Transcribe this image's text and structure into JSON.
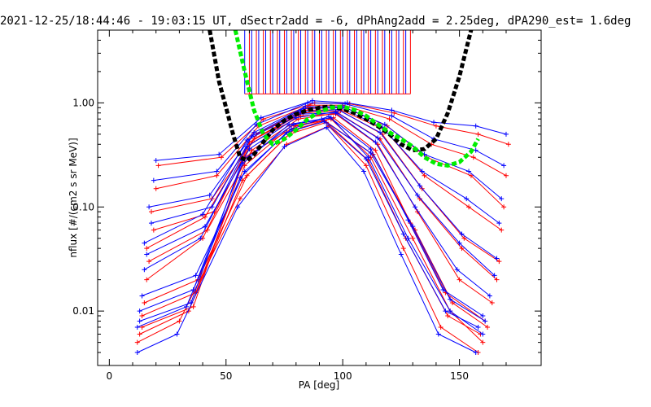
{
  "chart_data": {
    "type": "line",
    "title": "2021-12-25/18:44:46 - 19:03:15 UT, dSectr2add = -6, dPhAng2add = 2.25deg, dPA290_est=   1.6deg",
    "xlabel": "PA [deg]",
    "ylabel": "nflux [#/(cm2 s sr MeV)]",
    "xlim": [
      -5,
      185
    ],
    "ylim": [
      0.003,
      5.0
    ],
    "yscale": "log",
    "xticks": [
      0,
      50,
      100,
      150
    ],
    "xtick_labels": [
      "0",
      "50",
      "100",
      "150"
    ],
    "yticks": [
      0.01,
      0.1,
      1.0
    ],
    "ytick_labels": [
      "0.01",
      "0.10",
      "1.00"
    ],
    "grid": false,
    "colors": {
      "red": "#ff0000",
      "blue": "#0000ff",
      "black": "#000000",
      "green": "#00ee00"
    },
    "series": [
      {
        "name": "",
        "color": "#000000",
        "style": "thick-dashed",
        "x": [
          43,
          47,
          50,
          53,
          56,
          59,
          62,
          66,
          70,
          75,
          80,
          85,
          90,
          95,
          100,
          105,
          110,
          115,
          120,
          125,
          130,
          135,
          140,
          145,
          150,
          155
        ],
        "y": [
          5.0,
          1.6,
          0.9,
          0.5,
          0.3,
          0.28,
          0.32,
          0.42,
          0.55,
          0.68,
          0.78,
          0.85,
          0.9,
          0.92,
          0.88,
          0.8,
          0.7,
          0.6,
          0.5,
          0.4,
          0.35,
          0.36,
          0.45,
          0.8,
          1.8,
          5.0
        ]
      },
      {
        "name": "",
        "color": "#00ee00",
        "style": "thick-dashed",
        "x": [
          54,
          58,
          62,
          66,
          70,
          75,
          80,
          85,
          90,
          95,
          100,
          105,
          110,
          115,
          120,
          125,
          130,
          135,
          140,
          145,
          150,
          155,
          158
        ],
        "y": [
          5.0,
          2.0,
          0.85,
          0.5,
          0.4,
          0.45,
          0.55,
          0.7,
          0.82,
          0.9,
          0.92,
          0.86,
          0.75,
          0.62,
          0.52,
          0.45,
          0.38,
          0.3,
          0.26,
          0.25,
          0.27,
          0.34,
          0.45
        ]
      }
    ],
    "red_bin_x": [
      60,
      63,
      66,
      69,
      72,
      75,
      78,
      81,
      84,
      87,
      90,
      93,
      96,
      99,
      102,
      105,
      108,
      111,
      114,
      117,
      120,
      123,
      126,
      129
    ],
    "blue_bin_x": [
      58,
      61,
      64,
      67,
      70,
      73,
      76,
      79,
      82,
      85,
      88,
      91,
      94,
      97,
      100,
      103,
      106,
      109,
      112,
      115,
      118,
      121,
      124,
      127
    ],
    "red_spectra": [
      [
        [
          14,
          0.007
        ],
        [
          36,
          0.011
        ],
        [
          58,
          0.3
        ],
        [
          80,
          0.6
        ],
        [
          95,
          0.7
        ],
        [
          112,
          0.3
        ],
        [
          130,
          0.05
        ],
        [
          146,
          0.01
        ],
        [
          160,
          0.005
        ]
      ],
      [
        [
          16,
          0.02
        ],
        [
          40,
          0.05
        ],
        [
          60,
          0.4
        ],
        [
          82,
          0.75
        ],
        [
          97,
          0.78
        ],
        [
          115,
          0.4
        ],
        [
          132,
          0.09
        ],
        [
          150,
          0.02
        ],
        [
          164,
          0.012
        ]
      ],
      [
        [
          18,
          0.09
        ],
        [
          44,
          0.12
        ],
        [
          62,
          0.45
        ],
        [
          84,
          0.85
        ],
        [
          99,
          0.86
        ],
        [
          118,
          0.55
        ],
        [
          135,
          0.2
        ],
        [
          154,
          0.1
        ],
        [
          168,
          0.06
        ]
      ],
      [
        [
          12,
          0.005
        ],
        [
          30,
          0.008
        ],
        [
          56,
          0.12
        ],
        [
          76,
          0.4
        ],
        [
          94,
          0.6
        ],
        [
          110,
          0.25
        ],
        [
          126,
          0.04
        ],
        [
          142,
          0.007
        ],
        [
          158,
          0.004
        ]
      ],
      [
        [
          20,
          0.15
        ],
        [
          46,
          0.2
        ],
        [
          64,
          0.6
        ],
        [
          86,
          0.95
        ],
        [
          100,
          0.95
        ],
        [
          120,
          0.7
        ],
        [
          138,
          0.4
        ],
        [
          156,
          0.3
        ],
        [
          170,
          0.2
        ]
      ],
      [
        [
          15,
          0.012
        ],
        [
          38,
          0.02
        ],
        [
          59,
          0.2
        ],
        [
          79,
          0.55
        ],
        [
          96,
          0.72
        ],
        [
          114,
          0.35
        ],
        [
          129,
          0.07
        ],
        [
          144,
          0.015
        ],
        [
          161,
          0.008
        ]
      ],
      [
        [
          17,
          0.03
        ],
        [
          42,
          0.06
        ],
        [
          61,
          0.35
        ],
        [
          81,
          0.7
        ],
        [
          98,
          0.8
        ],
        [
          116,
          0.45
        ],
        [
          133,
          0.12
        ],
        [
          151,
          0.04
        ],
        [
          166,
          0.02
        ]
      ],
      [
        [
          13,
          0.006
        ],
        [
          34,
          0.01
        ],
        [
          57,
          0.18
        ],
        [
          77,
          0.5
        ],
        [
          93,
          0.65
        ],
        [
          111,
          0.28
        ],
        [
          127,
          0.05
        ],
        [
          145,
          0.009
        ],
        [
          159,
          0.006
        ]
      ],
      [
        [
          19,
          0.06
        ],
        [
          45,
          0.09
        ],
        [
          63,
          0.5
        ],
        [
          85,
          0.9
        ],
        [
          101,
          0.9
        ],
        [
          119,
          0.6
        ],
        [
          136,
          0.3
        ],
        [
          155,
          0.2
        ],
        [
          169,
          0.1
        ]
      ],
      [
        [
          14,
          0.009
        ],
        [
          37,
          0.015
        ],
        [
          58,
          0.25
        ],
        [
          78,
          0.6
        ],
        [
          92,
          0.68
        ],
        [
          113,
          0.32
        ],
        [
          131,
          0.06
        ],
        [
          147,
          0.012
        ],
        [
          162,
          0.007
        ]
      ],
      [
        [
          16,
          0.04
        ],
        [
          41,
          0.08
        ],
        [
          60,
          0.42
        ],
        [
          83,
          0.8
        ],
        [
          99,
          0.84
        ],
        [
          117,
          0.5
        ],
        [
          134,
          0.15
        ],
        [
          152,
          0.05
        ],
        [
          167,
          0.03
        ]
      ],
      [
        [
          21,
          0.25
        ],
        [
          48,
          0.3
        ],
        [
          66,
          0.7
        ],
        [
          88,
          1.0
        ],
        [
          103,
          0.98
        ],
        [
          122,
          0.8
        ],
        [
          140,
          0.6
        ],
        [
          158,
          0.5
        ],
        [
          171,
          0.4
        ]
      ]
    ],
    "blue_spectra": [
      [
        [
          13,
          0.008
        ],
        [
          35,
          0.012
        ],
        [
          57,
          0.28
        ],
        [
          79,
          0.62
        ],
        [
          95,
          0.72
        ],
        [
          111,
          0.3
        ],
        [
          128,
          0.05
        ],
        [
          146,
          0.01
        ],
        [
          160,
          0.006
        ]
      ],
      [
        [
          15,
          0.025
        ],
        [
          39,
          0.05
        ],
        [
          59,
          0.38
        ],
        [
          81,
          0.78
        ],
        [
          97,
          0.8
        ],
        [
          114,
          0.42
        ],
        [
          131,
          0.1
        ],
        [
          149,
          0.025
        ],
        [
          163,
          0.014
        ]
      ],
      [
        [
          17,
          0.1
        ],
        [
          43,
          0.13
        ],
        [
          61,
          0.48
        ],
        [
          83,
          0.88
        ],
        [
          99,
          0.9
        ],
        [
          117,
          0.58
        ],
        [
          134,
          0.22
        ],
        [
          153,
          0.12
        ],
        [
          167,
          0.07
        ]
      ],
      [
        [
          12,
          0.004
        ],
        [
          29,
          0.006
        ],
        [
          55,
          0.1
        ],
        [
          75,
          0.38
        ],
        [
          93,
          0.58
        ],
        [
          109,
          0.22
        ],
        [
          125,
          0.035
        ],
        [
          141,
          0.006
        ],
        [
          157,
          0.004
        ]
      ],
      [
        [
          19,
          0.18
        ],
        [
          46,
          0.22
        ],
        [
          63,
          0.62
        ],
        [
          85,
          1.0
        ],
        [
          101,
          0.98
        ],
        [
          121,
          0.75
        ],
        [
          139,
          0.45
        ],
        [
          157,
          0.35
        ],
        [
          169,
          0.25
        ]
      ],
      [
        [
          14,
          0.014
        ],
        [
          37,
          0.022
        ],
        [
          58,
          0.22
        ],
        [
          78,
          0.56
        ],
        [
          94,
          0.74
        ],
        [
          112,
          0.36
        ],
        [
          128,
          0.075
        ],
        [
          143,
          0.016
        ],
        [
          160,
          0.009
        ]
      ],
      [
        [
          16,
          0.035
        ],
        [
          41,
          0.065
        ],
        [
          60,
          0.36
        ],
        [
          80,
          0.72
        ],
        [
          97,
          0.82
        ],
        [
          115,
          0.46
        ],
        [
          132,
          0.13
        ],
        [
          150,
          0.045
        ],
        [
          165,
          0.022
        ]
      ],
      [
        [
          12,
          0.007
        ],
        [
          33,
          0.011
        ],
        [
          56,
          0.19
        ],
        [
          76,
          0.52
        ],
        [
          92,
          0.66
        ],
        [
          110,
          0.29
        ],
        [
          126,
          0.055
        ],
        [
          144,
          0.01
        ],
        [
          158,
          0.007
        ]
      ],
      [
        [
          18,
          0.07
        ],
        [
          44,
          0.1
        ],
        [
          62,
          0.52
        ],
        [
          84,
          0.92
        ],
        [
          100,
          0.92
        ],
        [
          118,
          0.62
        ],
        [
          135,
          0.32
        ],
        [
          154,
          0.22
        ],
        [
          168,
          0.12
        ]
      ],
      [
        [
          13,
          0.01
        ],
        [
          36,
          0.016
        ],
        [
          57,
          0.26
        ],
        [
          77,
          0.62
        ],
        [
          91,
          0.7
        ],
        [
          112,
          0.33
        ],
        [
          130,
          0.065
        ],
        [
          146,
          0.013
        ],
        [
          161,
          0.008
        ]
      ],
      [
        [
          15,
          0.045
        ],
        [
          40,
          0.085
        ],
        [
          59,
          0.44
        ],
        [
          82,
          0.82
        ],
        [
          98,
          0.86
        ],
        [
          116,
          0.52
        ],
        [
          133,
          0.16
        ],
        [
          151,
          0.055
        ],
        [
          166,
          0.032
        ]
      ],
      [
        [
          20,
          0.28
        ],
        [
          47,
          0.32
        ],
        [
          65,
          0.72
        ],
        [
          87,
          1.05
        ],
        [
          102,
          1.0
        ],
        [
          121,
          0.85
        ],
        [
          139,
          0.65
        ],
        [
          157,
          0.6
        ],
        [
          170,
          0.5
        ]
      ]
    ]
  }
}
